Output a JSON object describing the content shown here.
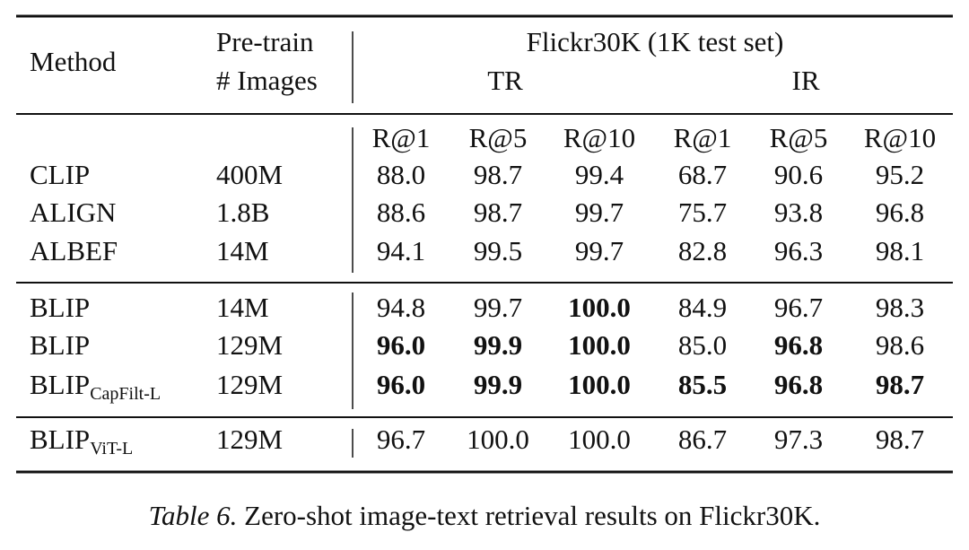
{
  "table": {
    "header": {
      "method": "Method",
      "pretrain": [
        "Pre-train",
        "# Images"
      ],
      "dataset": "Flickr30K (1K test set)",
      "groups": [
        "TR",
        "IR"
      ],
      "metrics": [
        "R@1",
        "R@5",
        "R@10",
        "R@1",
        "R@5",
        "R@10"
      ]
    },
    "sections": [
      [
        {
          "method": "CLIP",
          "pretrain": "400M",
          "values": [
            "88.0",
            "98.7",
            "99.4",
            "68.7",
            "90.6",
            "95.2"
          ],
          "bold": [
            false,
            false,
            false,
            false,
            false,
            false
          ]
        },
        {
          "method": "ALIGN",
          "pretrain": "1.8B",
          "values": [
            "88.6",
            "98.7",
            "99.7",
            "75.7",
            "93.8",
            "96.8"
          ],
          "bold": [
            false,
            false,
            false,
            false,
            false,
            false
          ]
        },
        {
          "method": "ALBEF",
          "pretrain": "14M",
          "values": [
            "94.1",
            "99.5",
            "99.7",
            "82.8",
            "96.3",
            "98.1"
          ],
          "bold": [
            false,
            false,
            false,
            false,
            false,
            false
          ]
        }
      ],
      [
        {
          "method": "BLIP",
          "pretrain": "14M",
          "values": [
            "94.8",
            "99.7",
            "100.0",
            "84.9",
            "96.7",
            "98.3"
          ],
          "bold": [
            false,
            false,
            true,
            false,
            false,
            false
          ]
        },
        {
          "method": "BLIP",
          "pretrain": "129M",
          "values": [
            "96.0",
            "99.9",
            "100.0",
            "85.0",
            "96.8",
            "98.6"
          ],
          "bold": [
            true,
            true,
            true,
            false,
            true,
            false
          ]
        },
        {
          "method": "BLIP",
          "subscript": "CapFilt-L",
          "pretrain": "129M",
          "values": [
            "96.0",
            "99.9",
            "100.0",
            "85.5",
            "96.8",
            "98.7"
          ],
          "bold": [
            true,
            true,
            true,
            true,
            true,
            true
          ]
        }
      ],
      [
        {
          "method": "BLIP",
          "subscript": "ViT-L",
          "pretrain": "129M",
          "values": [
            "96.7",
            "100.0",
            "100.0",
            "86.7",
            "97.3",
            "98.7"
          ],
          "bold": [
            false,
            false,
            false,
            false,
            false,
            false
          ]
        }
      ]
    ]
  },
  "caption": {
    "label": "Table 6.",
    "text": "Zero-shot image-text retrieval results on Flickr30K."
  }
}
